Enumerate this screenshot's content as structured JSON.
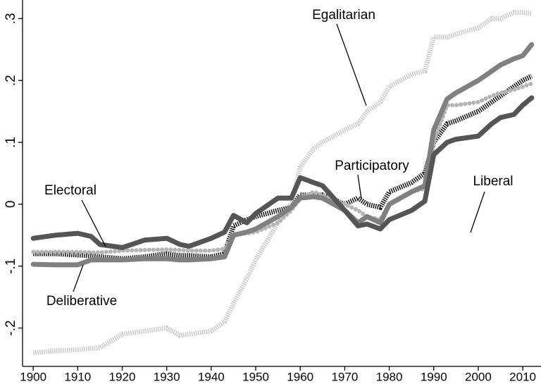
{
  "chart_data": {
    "type": "line",
    "x": [
      1900,
      1905,
      1910,
      1913,
      1915,
      1920,
      1925,
      1930,
      1933,
      1935,
      1940,
      1943,
      1945,
      1948,
      1950,
      1955,
      1958,
      1960,
      1963,
      1965,
      1970,
      1973,
      1975,
      1978,
      1980,
      1985,
      1988,
      1990,
      1993,
      1995,
      2000,
      2003,
      2005,
      2008,
      2010,
      2012
    ],
    "series": [
      {
        "name": "Egalitarian",
        "color": "#c8c8c8",
        "style": "hatched",
        "values": [
          -0.24,
          -0.237,
          -0.235,
          -0.233,
          -0.232,
          -0.21,
          -0.205,
          -0.2,
          -0.212,
          -0.21,
          -0.205,
          -0.19,
          -0.16,
          -0.12,
          -0.09,
          -0.03,
          0,
          0.06,
          0.09,
          0.1,
          0.12,
          0.13,
          0.15,
          0.165,
          0.19,
          0.21,
          0.215,
          0.27,
          0.27,
          0.275,
          0.285,
          0.3,
          0.3,
          0.31,
          0.31,
          0.308
        ]
      },
      {
        "name": "Participatory",
        "color": "#111111",
        "style": "hatched",
        "values": [
          -0.08,
          -0.08,
          -0.082,
          -0.083,
          -0.085,
          -0.088,
          -0.085,
          -0.08,
          -0.083,
          -0.083,
          -0.085,
          -0.08,
          -0.035,
          -0.025,
          -0.02,
          -0.01,
          -0.005,
          0.015,
          0.015,
          0.015,
          0,
          0.01,
          0,
          -0.005,
          0.02,
          0.035,
          0.05,
          0.1,
          0.13,
          0.135,
          0.15,
          0.165,
          0.175,
          0.19,
          0.2,
          0.207
        ]
      },
      {
        "name": "Electoral",
        "color": "#b4b4b4",
        "style": "dotted",
        "values": [
          -0.077,
          -0.077,
          -0.077,
          -0.078,
          -0.078,
          -0.075,
          -0.074,
          -0.073,
          -0.074,
          -0.075,
          -0.075,
          -0.072,
          -0.05,
          -0.047,
          -0.045,
          -0.03,
          -0.01,
          0.01,
          0.02,
          0.015,
          0,
          -0.01,
          -0.02,
          -0.025,
          0,
          0.02,
          0.025,
          0.1,
          0.16,
          0.16,
          0.165,
          0.175,
          0.18,
          0.185,
          0.19,
          0.195
        ]
      },
      {
        "name": "Deliberative",
        "color": "#808080",
        "style": "solid",
        "values": [
          -0.097,
          -0.098,
          -0.098,
          -0.09,
          -0.09,
          -0.09,
          -0.088,
          -0.088,
          -0.09,
          -0.09,
          -0.088,
          -0.085,
          -0.05,
          -0.045,
          -0.04,
          -0.02,
          -0.005,
          0.01,
          0.012,
          0.01,
          -0.01,
          -0.03,
          -0.02,
          -0.03,
          0,
          0.02,
          0.03,
          0.12,
          0.17,
          0.18,
          0.2,
          0.215,
          0.225,
          0.235,
          0.24,
          0.258
        ]
      },
      {
        "name": "Liberal",
        "color": "#555555",
        "style": "solid",
        "values": [
          -0.055,
          -0.05,
          -0.047,
          -0.052,
          -0.065,
          -0.07,
          -0.058,
          -0.055,
          -0.065,
          -0.068,
          -0.055,
          -0.045,
          -0.018,
          -0.03,
          -0.015,
          0.01,
          0.01,
          0.043,
          0.035,
          0.03,
          -0.01,
          -0.035,
          -0.032,
          -0.04,
          -0.025,
          -0.01,
          0.005,
          0.08,
          0.1,
          0.105,
          0.11,
          0.13,
          0.14,
          0.145,
          0.16,
          0.172
        ]
      }
    ],
    "xlim": [
      1897.6,
      2014.1
    ],
    "xticks": [
      1900,
      1910,
      1920,
      1930,
      1940,
      1950,
      1960,
      1970,
      1980,
      1990,
      2000,
      2010
    ],
    "ylim": [
      -0.262,
      0.33
    ],
    "yticks": [
      {
        "value": -0.2,
        "label": "-.2"
      },
      {
        "value": -0.1,
        "label": "-.1"
      },
      0,
      {
        "value": 0.1,
        "label": ".1"
      },
      {
        "value": 0.2,
        "label": ".2"
      },
      {
        "value": 0.3,
        "label": ".3"
      }
    ],
    "grid": false
  }
}
